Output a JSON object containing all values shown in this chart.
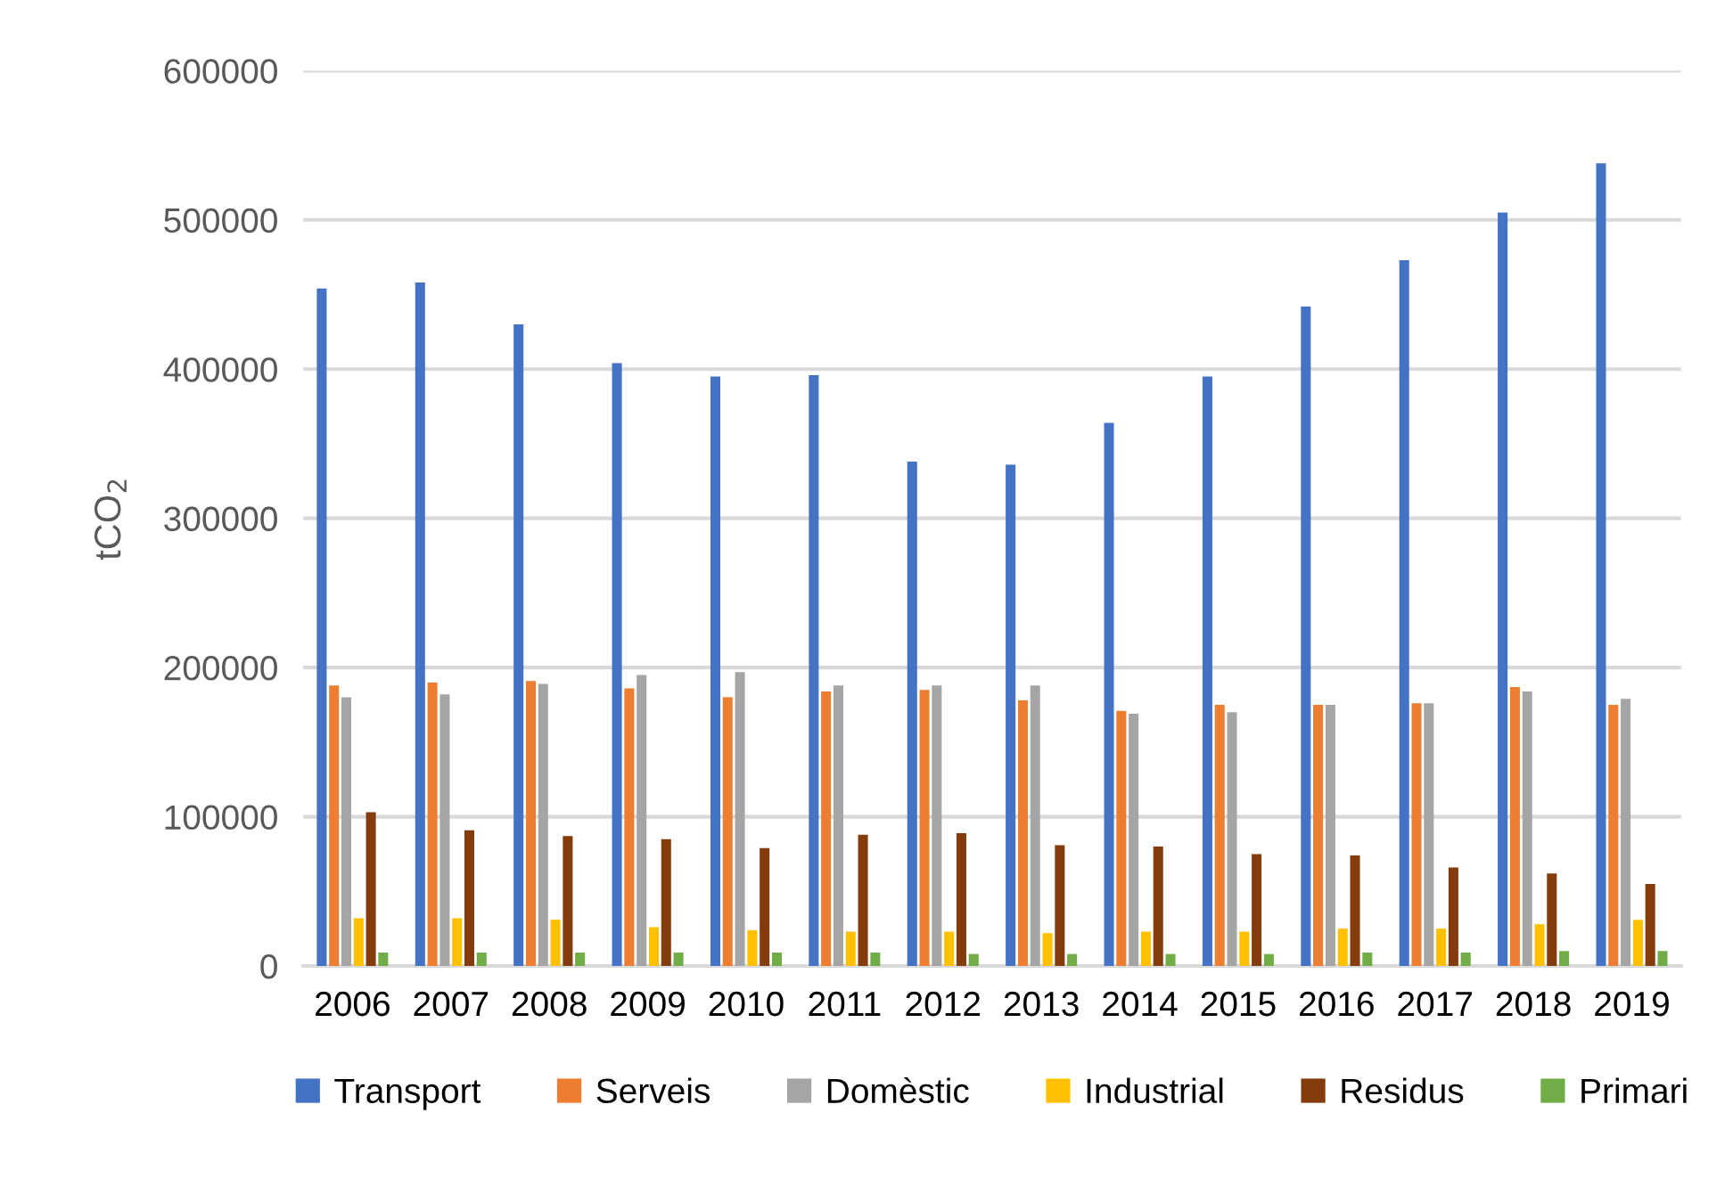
{
  "chart_data": {
    "type": "bar",
    "ylabel": "tCO$_{2}$",
    "categories": [
      "2006",
      "2007",
      "2008",
      "2009",
      "2010",
      "2011",
      "2012",
      "2013",
      "2014",
      "2015",
      "2016",
      "2017",
      "2018",
      "2019"
    ],
    "series": [
      {
        "name": "Transport",
        "color": "#4472c4",
        "values": [
          454000,
          458000,
          430000,
          404000,
          395000,
          396000,
          338000,
          336000,
          364000,
          395000,
          442000,
          473000,
          505000,
          538000
        ]
      },
      {
        "name": "Serveis",
        "color": "#ed7d31",
        "values": [
          188000,
          190000,
          191000,
          186000,
          180000,
          184000,
          185000,
          178000,
          171000,
          175000,
          175000,
          176000,
          187000,
          175000
        ]
      },
      {
        "name": "Domèstic",
        "color": "#a5a5a5",
        "values": [
          180000,
          182000,
          189000,
          195000,
          197000,
          188000,
          188000,
          188000,
          169000,
          170000,
          175000,
          176000,
          184000,
          179000
        ]
      },
      {
        "name": "Industrial",
        "color": "#ffc000",
        "values": [
          32000,
          32000,
          31000,
          26000,
          24000,
          23000,
          23000,
          22000,
          23000,
          23000,
          25000,
          25000,
          28000,
          31000
        ]
      },
      {
        "name": "Residus",
        "color": "#843c0c",
        "values": [
          103000,
          91000,
          87000,
          85000,
          79000,
          88000,
          89000,
          81000,
          80000,
          75000,
          74000,
          66000,
          62000,
          55000
        ]
      },
      {
        "name": "Primari",
        "color": "#70ad47",
        "values": [
          9000,
          9000,
          9000,
          9000,
          9000,
          9000,
          8000,
          8000,
          8000,
          8000,
          9000,
          9000,
          10000,
          10000
        ]
      }
    ],
    "ylim": [
      0,
      600000
    ],
    "yticks": [
      0,
      100000,
      200000,
      300000,
      400000,
      500000,
      600000
    ],
    "grid": "y",
    "legend": "bottom"
  }
}
